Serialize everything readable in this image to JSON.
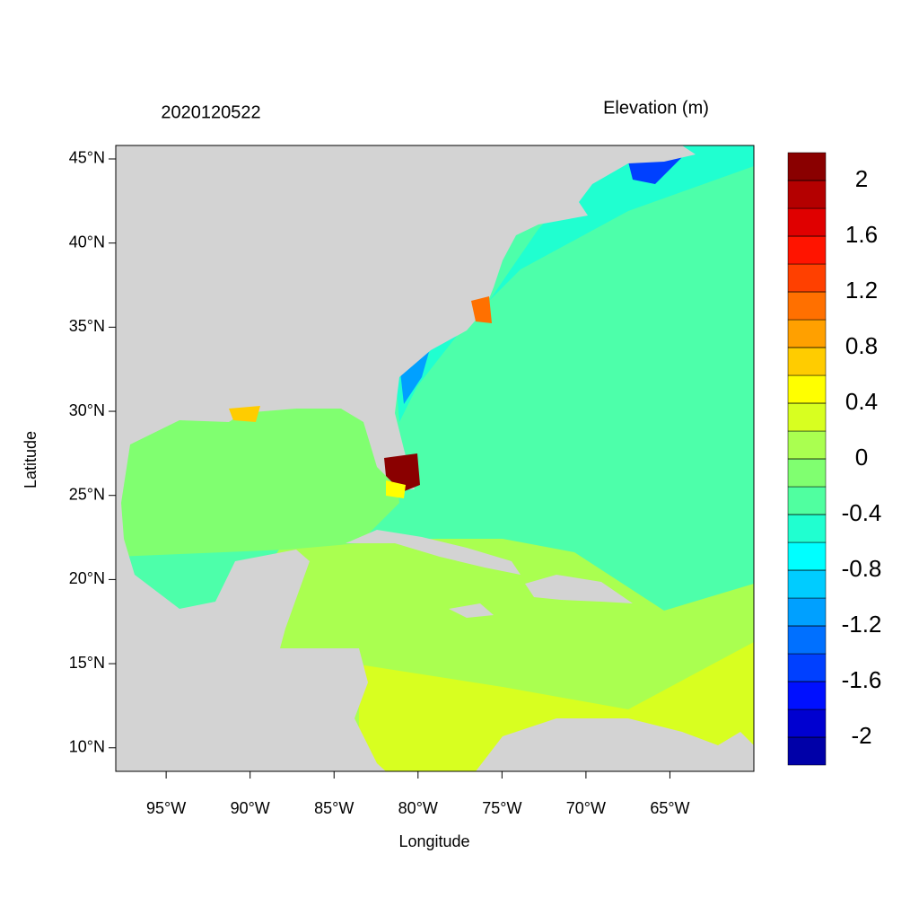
{
  "chart_data": {
    "type": "map",
    "title": "2020120522",
    "colorbar_title": "Elevation (m)",
    "x_label": "Longitude",
    "y_label": "Latitude",
    "xlim": [
      -98,
      -60
    ],
    "ylim": [
      8.6,
      45.8
    ],
    "xticks": [
      {
        "value": -95,
        "label": "95°W"
      },
      {
        "value": -90,
        "label": "90°W"
      },
      {
        "value": -85,
        "label": "85°W"
      },
      {
        "value": -80,
        "label": "80°W"
      },
      {
        "value": -75,
        "label": "75°W"
      },
      {
        "value": -70,
        "label": "70°W"
      },
      {
        "value": -65,
        "label": "65°W"
      }
    ],
    "yticks": [
      {
        "value": 10,
        "label": "10°N"
      },
      {
        "value": 15,
        "label": "15°N"
      },
      {
        "value": 20,
        "label": "20°N"
      },
      {
        "value": 25,
        "label": "25°N"
      },
      {
        "value": 30,
        "label": "30°N"
      },
      {
        "value": 35,
        "label": "35°N"
      },
      {
        "value": 40,
        "label": "40°N"
      },
      {
        "value": 45,
        "label": "45°N"
      }
    ],
    "colorbar": {
      "lim": [
        -2.2,
        2.2
      ],
      "ticks": [
        -2,
        -1.6,
        -1.2,
        -0.8,
        -0.4,
        0,
        0.4,
        0.8,
        1.2,
        1.6,
        2
      ],
      "colors": [
        "#0000a8",
        "#0000d0",
        "#0010ff",
        "#0040ff",
        "#0070ff",
        "#00a0ff",
        "#00ccff",
        "#00ffff",
        "#20ffd0",
        "#50ffa0",
        "#80ff70",
        "#aaff50",
        "#d8ff20",
        "#ffff00",
        "#ffcc00",
        "#ffa000",
        "#ff7000",
        "#ff4000",
        "#ff1400",
        "#e00000",
        "#b40000",
        "#8a0000"
      ]
    }
  }
}
